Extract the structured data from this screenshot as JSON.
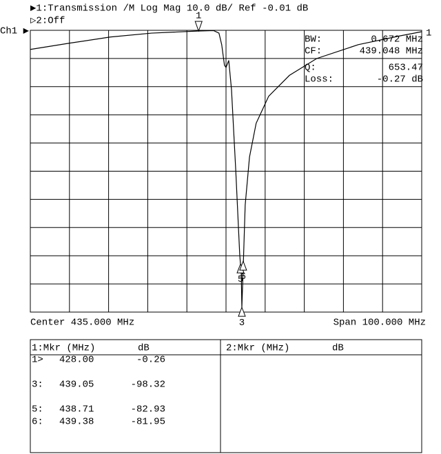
{
  "header": {
    "line1": "▶1:Transmission /M Log Mag 10.0 dB/ Ref -0.01 dB",
    "line2": "▷2:Off",
    "channel": "Ch1 ▶"
  },
  "chart_data": {
    "type": "line",
    "x": [
      385,
      394.9,
      405.4,
      416,
      428,
      431.8,
      433.2,
      433.9,
      434.6,
      435,
      435.7,
      436.4,
      437.5,
      438.5,
      438.9,
      439.05,
      439.4,
      439.9,
      441,
      442.7,
      445.9,
      451.2,
      458.2,
      468.8,
      479.4,
      485
    ],
    "values": [
      -6.8,
      -4.6,
      -2.4,
      -1.0,
      -0.26,
      -0.1,
      -1.0,
      -5.1,
      -12.4,
      -13.2,
      -10.7,
      -21,
      -50,
      -79.5,
      -86.8,
      -98.32,
      -84,
      -62,
      -45,
      -33,
      -23.4,
      -16,
      -10,
      -5.1,
      -2,
      -0.5
    ],
    "xlim": [
      385,
      485
    ],
    "ylim": [
      -100.01,
      -0.01
    ],
    "grid": true,
    "color": "#000000",
    "center_label": "Center 435.000 MHz",
    "span_label": "Span 100.000 MHz",
    "edge_label": "1",
    "markers": [
      {
        "label": "1",
        "x": 428,
        "value": -0.26
      },
      {
        "label": "3",
        "x": 439.05,
        "value": -98.32
      },
      {
        "label": "5",
        "x": 438.71,
        "value": -82.93
      },
      {
        "label": "6",
        "x": 439.38,
        "value": -81.95
      }
    ]
  },
  "readout": [
    [
      "BW:",
      "0.672 MHz"
    ],
    [
      "CF:",
      "439.048 MHz"
    ],
    [
      "Q:",
      "653.47"
    ],
    [
      "Loss:",
      "-0.27 dB"
    ]
  ],
  "table": {
    "left": {
      "header": [
        "1:Mkr (MHz)",
        "dB"
      ],
      "rows": [
        [
          "1>",
          "428.00",
          "-0.26"
        ],
        [
          "3:",
          "439.05",
          "-98.32"
        ],
        [
          "5:",
          "438.71",
          "-82.93"
        ],
        [
          "6:",
          "439.38",
          "-81.95"
        ]
      ]
    },
    "right": {
      "header": [
        "2:Mkr (MHz)",
        "dB"
      ]
    }
  }
}
